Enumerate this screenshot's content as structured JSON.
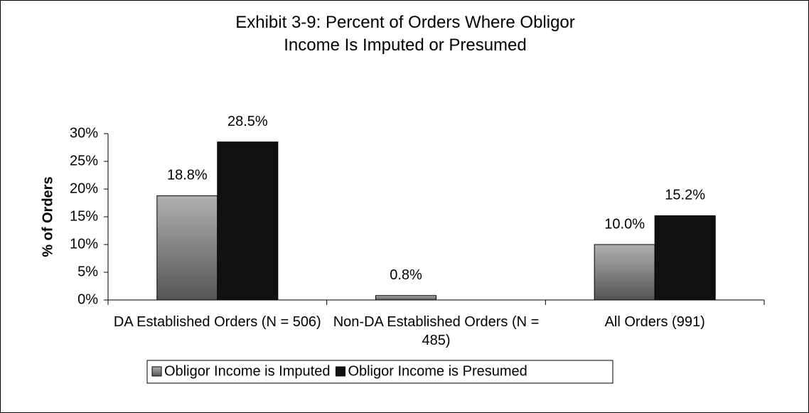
{
  "chart_data": {
    "type": "bar",
    "title": "Exhibit 3-9: Percent of Orders Where Obligor Income Is Imputed or Presumed",
    "y_label": "% of Orders",
    "categories": [
      "DA Established Orders (N = 506)",
      "Non-DA Established Orders (N = 485)",
      "All Orders (991)"
    ],
    "series": [
      {
        "name": "Obligor Income is Imputed",
        "color": "#9a9a9a",
        "values": [
          18.8,
          0.8,
          10.0
        ],
        "value_labels": [
          "18.8%",
          "0.8%",
          "10.0%"
        ]
      },
      {
        "name": "Obligor Income is Presumed",
        "color": "#111111",
        "values": [
          28.5,
          null,
          15.2
        ],
        "value_labels": [
          "28.5%",
          null,
          "15.2%"
        ]
      }
    ],
    "ylim": [
      0,
      30
    ],
    "yticks": [
      {
        "value": 0,
        "label": "0%"
      },
      {
        "value": 5,
        "label": "5%"
      },
      {
        "value": 10,
        "label": "10%"
      },
      {
        "value": 15,
        "label": "15%"
      },
      {
        "value": 20,
        "label": "20%"
      },
      {
        "value": 25,
        "label": "25%"
      },
      {
        "value": 30,
        "label": "30%"
      }
    ],
    "legend": "bottom"
  }
}
